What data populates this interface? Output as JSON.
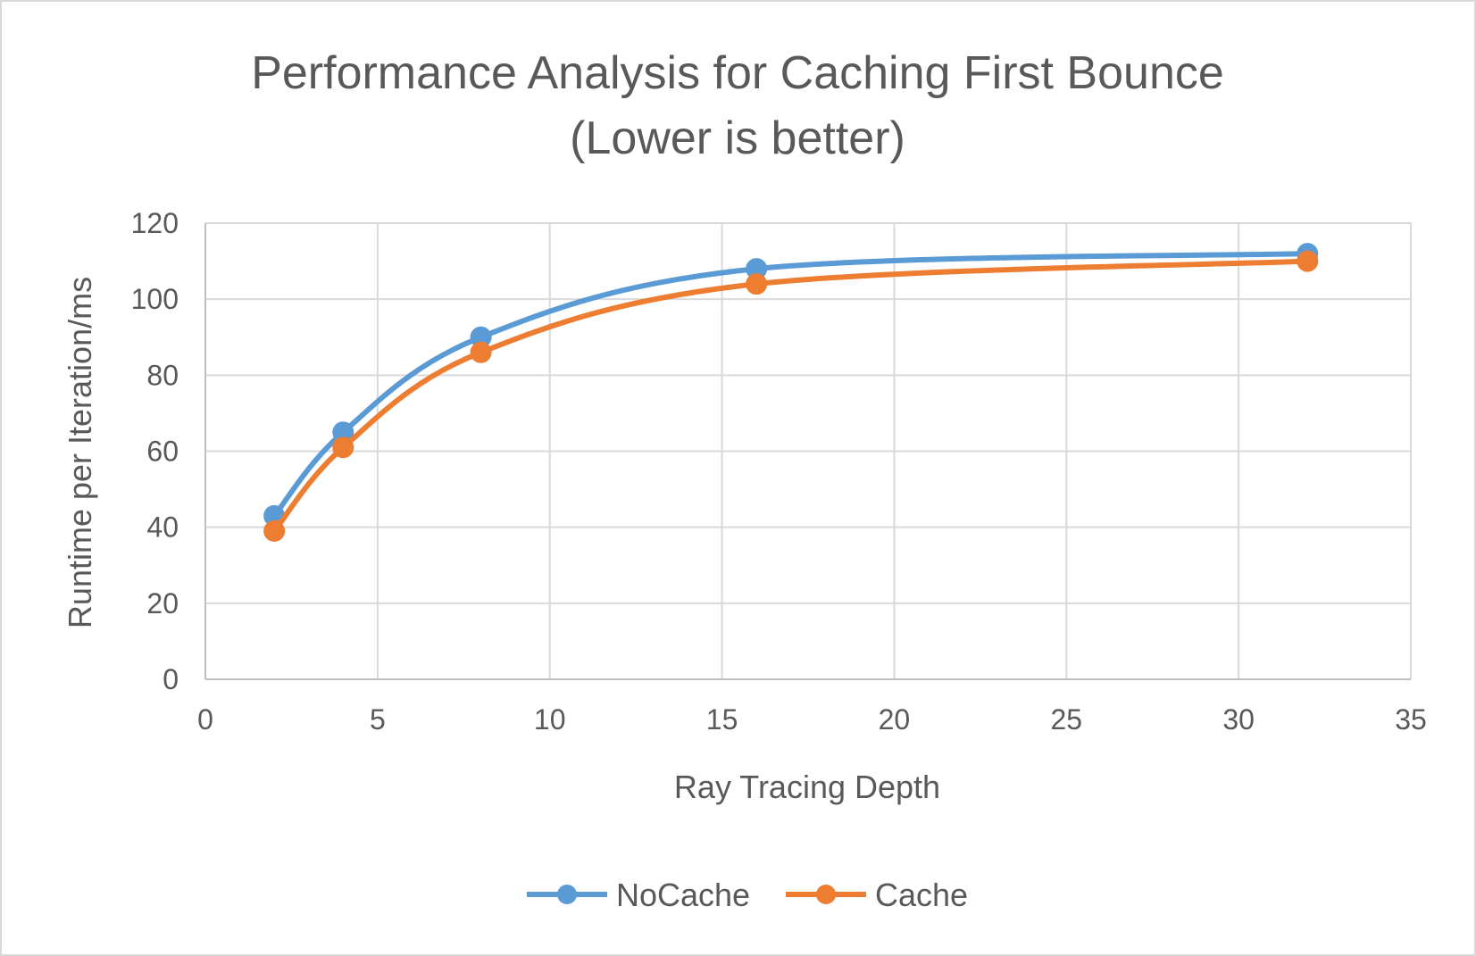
{
  "chart_data": {
    "type": "line",
    "title_line1": "Performance Analysis for Caching First Bounce",
    "title_line2": "(Lower is better)",
    "xlabel": "Ray Tracing Depth",
    "ylabel": "Runtime per Iteration/ms",
    "xlim": [
      0,
      35
    ],
    "ylim": [
      0,
      120
    ],
    "x_ticks": [
      "0",
      "5",
      "10",
      "15",
      "20",
      "25",
      "30",
      "35"
    ],
    "y_ticks": [
      "0",
      "20",
      "40",
      "60",
      "80",
      "100",
      "120"
    ],
    "grid": true,
    "legend_position": "bottom",
    "smooth": true,
    "series": [
      {
        "name": "NoCache",
        "color": "#5B9BD5",
        "x": [
          2,
          4,
          8,
          16,
          32
        ],
        "y": [
          43,
          65,
          90,
          108,
          112
        ]
      },
      {
        "name": "Cache",
        "color": "#ED7D31",
        "x": [
          2,
          4,
          8,
          16,
          32
        ],
        "y": [
          39,
          61,
          86,
          104,
          110
        ]
      }
    ]
  }
}
